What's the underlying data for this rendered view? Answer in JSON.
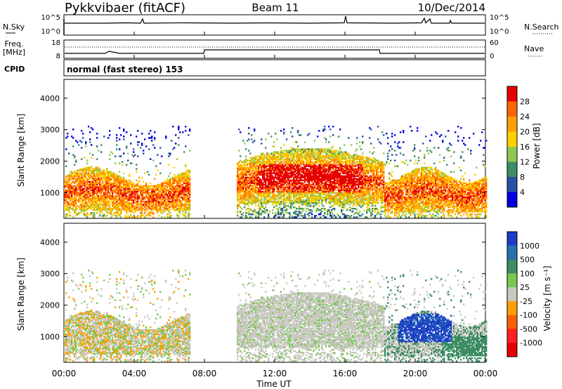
{
  "header": {
    "station": "Pykkvibaer (fitACF)",
    "beam": "Beam 11",
    "date": "10/Dec/2014"
  },
  "noise_panel": {
    "left_label": "N.Sky",
    "right_label": "N.Search",
    "left_ticks": [
      "10^5",
      "10^0"
    ],
    "right_ticks": [
      "10^5",
      "10^0"
    ]
  },
  "freq_panel": {
    "left_label_1": "Freq.",
    "left_label_2": "[MHz]",
    "right_label": "Nave",
    "left_ticks": [
      "18",
      "8"
    ],
    "right_ticks": [
      "60",
      "0"
    ]
  },
  "cpid": {
    "label": "CPID",
    "value": "normal (fast stereo) 153"
  },
  "axes": {
    "ylabel": "Slant Range [km]",
    "xlabel": "Time UT",
    "y_ticks": [
      "1000",
      "2000",
      "3000",
      "4000"
    ],
    "x_ticks": [
      "00:00",
      "04:00",
      "08:00",
      "12:00",
      "16:00",
      "20:00",
      "00:00"
    ]
  },
  "power_scale": {
    "label": "Power [dB]",
    "ticks": [
      "28",
      "24",
      "20",
      "16",
      "12",
      "8",
      "4"
    ],
    "colors": [
      "#e60000",
      "#ff6600",
      "#ffa000",
      "#ffd000",
      "#90c850",
      "#3c8c64",
      "#2850a0",
      "#0000e0"
    ]
  },
  "velocity_scale": {
    "label": "Velocity [m s⁻¹]",
    "ticks": [
      "1000",
      "500",
      "100",
      "25",
      "-25",
      "-100",
      "-500",
      "-1000"
    ],
    "colors": [
      "#1e3cc8",
      "#2870b0",
      "#3c8c64",
      "#78c850",
      "#c8c8c0",
      "#ffa000",
      "#ff6000",
      "#ff2020",
      "#e60000"
    ]
  },
  "chart_data": [
    {
      "type": "heatmap",
      "title": "Power",
      "xlabel": "Time UT",
      "ylabel": "Slant Range [km]",
      "xlim": [
        0,
        24
      ],
      "ylim": [
        180,
        4600
      ],
      "colorbar_range_db": [
        0,
        30
      ],
      "regions": [
        {
          "t0": 0.0,
          "t1": 7.2,
          "r0": 450,
          "r1": 1700,
          "level": "mixed 8-24 dB",
          "peak_r": 700
        },
        {
          "t0": 10.0,
          "t1": 18.2,
          "r0": 650,
          "r1": 2350,
          "level": "mixed 12-28 dB",
          "peak_r": 1500
        },
        {
          "t0": 18.0,
          "t1": 24.0,
          "r0": 400,
          "r1": 1800,
          "level": "mixed 8-24 dB",
          "peak_r": 1300
        }
      ]
    },
    {
      "type": "heatmap",
      "title": "Velocity",
      "xlabel": "Time UT",
      "ylabel": "Slant Range [km]",
      "xlim": [
        0,
        24
      ],
      "ylim": [
        180,
        4600
      ],
      "colorbar_range": [
        -1000,
        1000
      ],
      "regions": [
        {
          "t0": 0.0,
          "t1": 7.0,
          "r0": 500,
          "r1": 1700,
          "level": "-100 to 25"
        },
        {
          "t0": 10.0,
          "t1": 18.0,
          "r0": 700,
          "r1": 2300,
          "level": "-25 to 25"
        },
        {
          "t0": 19.0,
          "t1": 22.0,
          "r0": 800,
          "r1": 1700,
          "level": "500 to 1000"
        },
        {
          "t0": 21.5,
          "t1": 24.0,
          "r0": 450,
          "r1": 1000,
          "level": "100 to 500"
        }
      ]
    }
  ]
}
